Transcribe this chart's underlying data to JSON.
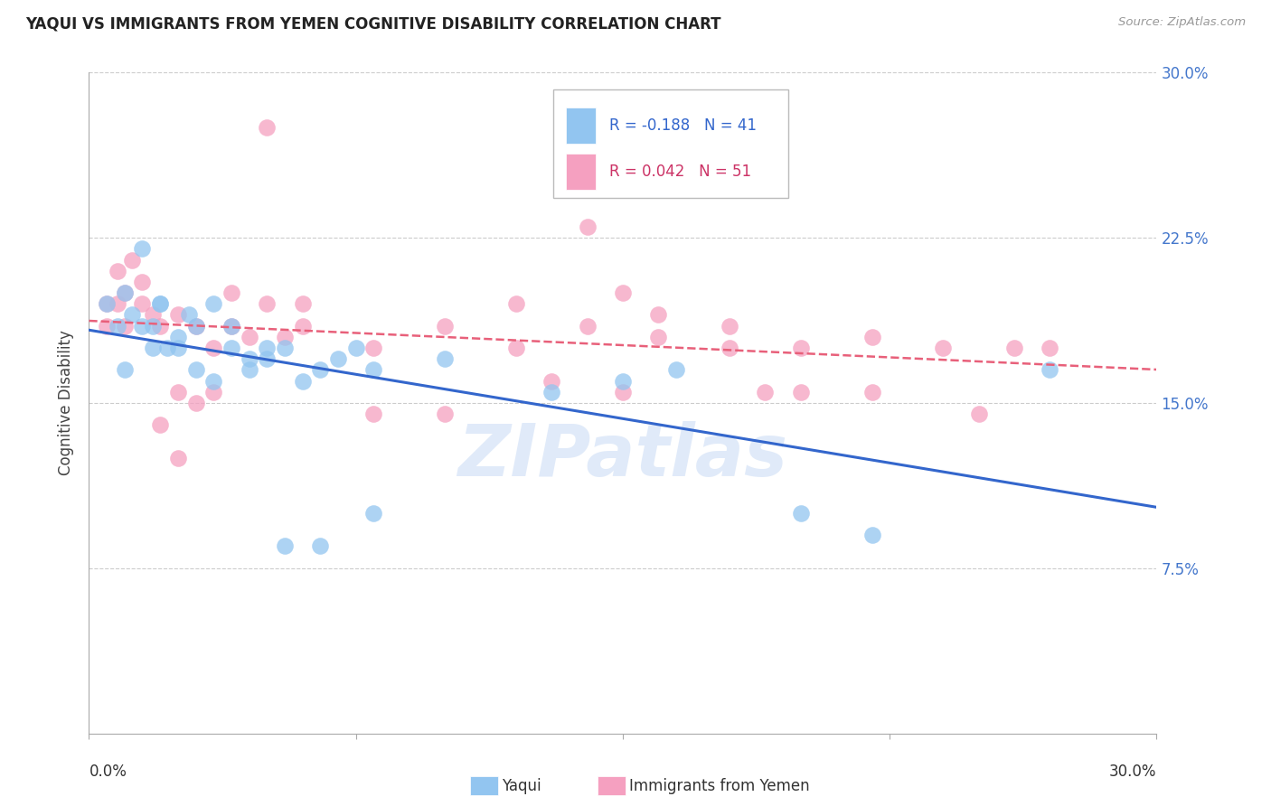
{
  "title": "YAQUI VS IMMIGRANTS FROM YEMEN COGNITIVE DISABILITY CORRELATION CHART",
  "source": "Source: ZipAtlas.com",
  "ylabel": "Cognitive Disability",
  "ytick_values": [
    0.0,
    0.075,
    0.15,
    0.225,
    0.3
  ],
  "xmin": 0.0,
  "xmax": 0.3,
  "ymin": 0.0,
  "ymax": 0.3,
  "color_yaqui": "#92C5F0",
  "color_yemen": "#F5A0C0",
  "trendline_color_yaqui": "#3366CC",
  "trendline_color_yemen": "#E8607A",
  "watermark": "ZIPatlas",
  "yaqui_x": [
    0.005,
    0.008,
    0.01,
    0.012,
    0.015,
    0.018,
    0.02,
    0.022,
    0.025,
    0.028,
    0.01,
    0.015,
    0.018,
    0.02,
    0.025,
    0.03,
    0.035,
    0.04,
    0.045,
    0.05,
    0.03,
    0.035,
    0.04,
    0.045,
    0.05,
    0.055,
    0.06,
    0.065,
    0.07,
    0.075,
    0.08,
    0.1,
    0.13,
    0.15,
    0.2,
    0.22,
    0.055,
    0.065,
    0.08,
    0.165,
    0.27
  ],
  "yaqui_y": [
    0.195,
    0.185,
    0.2,
    0.19,
    0.22,
    0.185,
    0.195,
    0.175,
    0.18,
    0.19,
    0.165,
    0.185,
    0.175,
    0.195,
    0.175,
    0.185,
    0.195,
    0.185,
    0.17,
    0.175,
    0.165,
    0.16,
    0.175,
    0.165,
    0.17,
    0.175,
    0.16,
    0.165,
    0.17,
    0.175,
    0.165,
    0.17,
    0.155,
    0.16,
    0.1,
    0.09,
    0.085,
    0.085,
    0.1,
    0.165,
    0.165
  ],
  "yemen_x": [
    0.005,
    0.008,
    0.01,
    0.012,
    0.015,
    0.005,
    0.008,
    0.01,
    0.015,
    0.018,
    0.02,
    0.025,
    0.03,
    0.035,
    0.04,
    0.045,
    0.05,
    0.055,
    0.06,
    0.08,
    0.1,
    0.12,
    0.14,
    0.16,
    0.18,
    0.2,
    0.22,
    0.24,
    0.26,
    0.14,
    0.16,
    0.18,
    0.025,
    0.03,
    0.15,
    0.25,
    0.27,
    0.04,
    0.06,
    0.1,
    0.12,
    0.02,
    0.025,
    0.15,
    0.2,
    0.08,
    0.05,
    0.035,
    0.19,
    0.22,
    0.13
  ],
  "yemen_y": [
    0.195,
    0.21,
    0.2,
    0.215,
    0.205,
    0.185,
    0.195,
    0.185,
    0.195,
    0.19,
    0.185,
    0.19,
    0.185,
    0.175,
    0.185,
    0.18,
    0.195,
    0.18,
    0.185,
    0.175,
    0.185,
    0.195,
    0.185,
    0.18,
    0.185,
    0.175,
    0.18,
    0.175,
    0.175,
    0.23,
    0.19,
    0.175,
    0.155,
    0.15,
    0.2,
    0.145,
    0.175,
    0.2,
    0.195,
    0.145,
    0.175,
    0.14,
    0.125,
    0.155,
    0.155,
    0.145,
    0.275,
    0.155,
    0.155,
    0.155,
    0.16
  ]
}
